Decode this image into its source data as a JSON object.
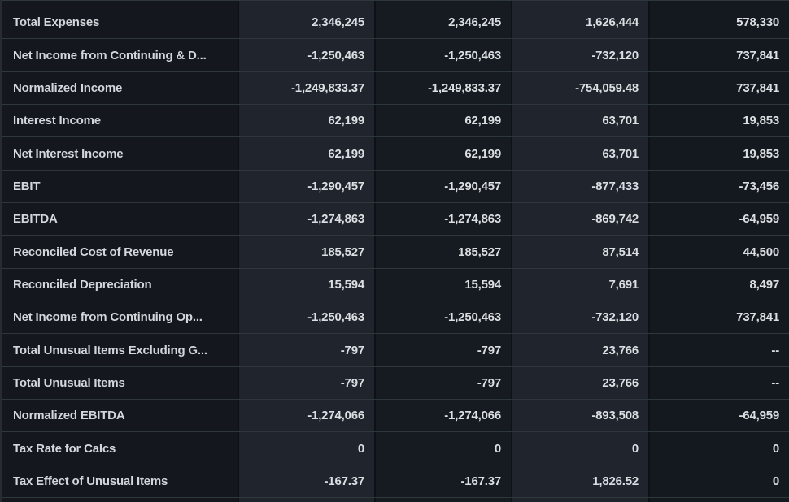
{
  "table": {
    "name": "income-statement-metrics",
    "columns": {
      "label_column": "",
      "value_column_count": 4
    },
    "rows": [
      {
        "label": "Total Expenses",
        "values": [
          "2,346,245",
          "2,346,245",
          "1,626,444",
          "578,330"
        ]
      },
      {
        "label": "Net Income from Continuing & D...",
        "values": [
          "-1,250,463",
          "-1,250,463",
          "-732,120",
          "737,841"
        ]
      },
      {
        "label": "Normalized Income",
        "values": [
          "-1,249,833.37",
          "-1,249,833.37",
          "-754,059.48",
          "737,841"
        ]
      },
      {
        "label": "Interest Income",
        "values": [
          "62,199",
          "62,199",
          "63,701",
          "19,853"
        ]
      },
      {
        "label": "Net Interest Income",
        "values": [
          "62,199",
          "62,199",
          "63,701",
          "19,853"
        ]
      },
      {
        "label": "EBIT",
        "values": [
          "-1,290,457",
          "-1,290,457",
          "-877,433",
          "-73,456"
        ]
      },
      {
        "label": "EBITDA",
        "values": [
          "-1,274,863",
          "-1,274,863",
          "-869,742",
          "-64,959"
        ]
      },
      {
        "label": "Reconciled Cost of Revenue",
        "values": [
          "185,527",
          "185,527",
          "87,514",
          "44,500"
        ]
      },
      {
        "label": "Reconciled Depreciation",
        "values": [
          "15,594",
          "15,594",
          "7,691",
          "8,497"
        ]
      },
      {
        "label": "Net Income from Continuing Op...",
        "values": [
          "-1,250,463",
          "-1,250,463",
          "-732,120",
          "737,841"
        ]
      },
      {
        "label": "Total Unusual Items Excluding G...",
        "values": [
          "-797",
          "-797",
          "23,766",
          "--"
        ]
      },
      {
        "label": "Total Unusual Items",
        "values": [
          "-797",
          "-797",
          "23,766",
          "--"
        ]
      },
      {
        "label": "Normalized EBITDA",
        "values": [
          "-1,274,066",
          "-1,274,066",
          "-893,508",
          "-64,959"
        ]
      },
      {
        "label": "Tax Rate for Calcs",
        "values": [
          "0",
          "0",
          "0",
          "0"
        ]
      },
      {
        "label": "Tax Effect of Unusual Items",
        "values": [
          "-167.37",
          "-167.37",
          "1,826.52",
          "0"
        ]
      }
    ],
    "colors": {
      "background": "#0d1116",
      "label_column_bg": "#14181e",
      "stripe_light_bg": "#1f242d",
      "stripe_dark_bg": "#161b21",
      "row_separator": "#2e373a",
      "column_gap": "#0d1014",
      "label_text": "#d3d6da",
      "value_text": "#dcdfe2"
    }
  }
}
